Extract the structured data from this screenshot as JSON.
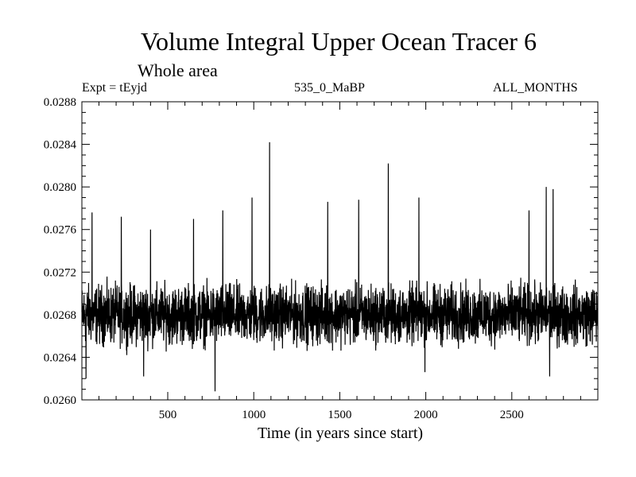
{
  "chart_data": {
    "type": "line",
    "title": "Volume Integral Upper Ocean Tracer 6",
    "subtitle": "Whole area",
    "experiment_label": "Expt = tEyjd",
    "run_label": "535_0_MaBP",
    "months_label": "ALL_MONTHS",
    "xlabel": "Time (in years since start)",
    "ylabel": "",
    "xlim": [
      1,
      3000
    ],
    "ylim": [
      0.026,
      0.0288
    ],
    "x_ticks": [
      500,
      1000,
      1500,
      2000,
      2500
    ],
    "y_ticks": [
      "0.0260",
      "0.0264",
      "0.0268",
      "0.0272",
      "0.0276",
      "0.0280",
      "0.0284",
      "0.0288"
    ],
    "series": [
      {
        "name": "Tracer 6",
        "baseline": 0.0268,
        "noise": 0.00025,
        "n_points": 3000,
        "peaks": [
          {
            "x": 60,
            "y": 0.02776
          },
          {
            "x": 230,
            "y": 0.02772
          },
          {
            "x": 400,
            "y": 0.0276
          },
          {
            "x": 650,
            "y": 0.0277
          },
          {
            "x": 820,
            "y": 0.02778
          },
          {
            "x": 990,
            "y": 0.0279
          },
          {
            "x": 1092,
            "y": 0.02842
          },
          {
            "x": 1430,
            "y": 0.02786
          },
          {
            "x": 1610,
            "y": 0.02788
          },
          {
            "x": 1782,
            "y": 0.02822
          },
          {
            "x": 1960,
            "y": 0.0279
          },
          {
            "x": 2600,
            "y": 0.02778
          },
          {
            "x": 2700,
            "y": 0.028
          },
          {
            "x": 2740,
            "y": 0.02798
          }
        ],
        "troughs": [
          {
            "x": 25,
            "y": 0.0262
          },
          {
            "x": 360,
            "y": 0.02622
          },
          {
            "x": 775,
            "y": 0.02608
          },
          {
            "x": 1995,
            "y": 0.02626
          },
          {
            "x": 2720,
            "y": 0.02622
          }
        ]
      }
    ]
  }
}
